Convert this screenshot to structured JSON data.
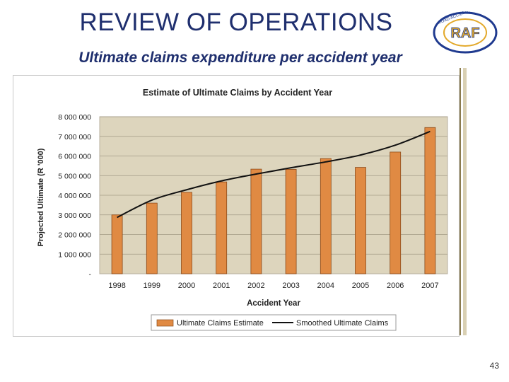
{
  "slide": {
    "title": "REVIEW OF OPERATIONS",
    "subtitle": "Ultimate claims expenditure per accident year",
    "page_number": "43",
    "logo_text": "RAF",
    "logo_ring_text": "ROAD ACCIDENT FUND"
  },
  "colors": {
    "title": "#1f2f6e",
    "plot_bg": "#ddd5bd",
    "bar": "#e08a43",
    "bar_border": "#8a4a1a",
    "line": "#111111",
    "logo_blue": "#1f3a8f",
    "logo_gold": "#e3a92b"
  },
  "chart_data": {
    "type": "bar",
    "title": "Estimate of Ultimate Claims by Accident Year",
    "xlabel": "Accident Year",
    "ylabel": "Projected Ultimate (R '000)",
    "categories": [
      "1998",
      "1999",
      "2000",
      "2001",
      "2002",
      "2003",
      "2004",
      "2005",
      "2006",
      "2007"
    ],
    "series": [
      {
        "name": "Ultimate Claims Estimate",
        "kind": "bar",
        "values": [
          3000000,
          3600000,
          4150000,
          4680000,
          5330000,
          5320000,
          5870000,
          5420000,
          6200000,
          7450000
        ]
      },
      {
        "name": "Smoothed Ultimate Claims",
        "kind": "line",
        "values": [
          2870000,
          3750000,
          4280000,
          4730000,
          5080000,
          5400000,
          5700000,
          6050000,
          6550000,
          7250000
        ]
      }
    ],
    "ylim": [
      0,
      8000000
    ],
    "yticks": [
      {
        "value": 0,
        "label": "-"
      },
      {
        "value": 1000000,
        "label": "1 000 000"
      },
      {
        "value": 2000000,
        "label": "2 000 000"
      },
      {
        "value": 3000000,
        "label": "3 000 000"
      },
      {
        "value": 4000000,
        "label": "4 000 000"
      },
      {
        "value": 5000000,
        "label": "5 000 000"
      },
      {
        "value": 6000000,
        "label": "6 000 000"
      },
      {
        "value": 7000000,
        "label": "7 000 000"
      },
      {
        "value": 8000000,
        "label": "8 000 000"
      }
    ],
    "grid": true,
    "legend_position": "bottom"
  }
}
